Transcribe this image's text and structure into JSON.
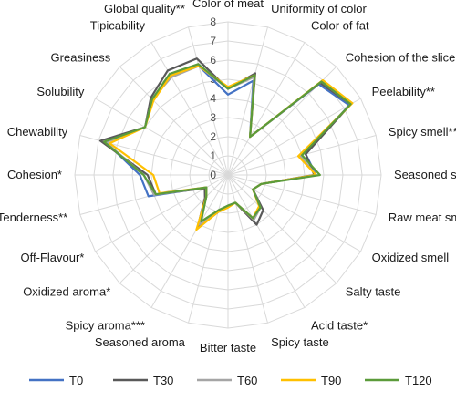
{
  "chart_data": {
    "type": "radar",
    "axes": [
      "Color of meat",
      "Uniformity of color",
      "Color of fat",
      "Cohesion of the slice",
      "Peelability**",
      "Spicy smell**",
      "Seasoned smell",
      "Raw meat smell",
      "Oxidized smell",
      "Salty taste",
      "Acid taste*",
      "Spicy taste",
      "Bitter taste",
      "Seasoned aroma",
      "Spicy aroma***",
      "Oxidized aroma*",
      "Off-Flavour*",
      "Tenderness**",
      "Cohesion*",
      "Chewability",
      "Solubility",
      "Greasiness",
      "Tipicability",
      "Global quality**"
    ],
    "rlim": [
      0,
      8
    ],
    "ticks": [
      "0",
      "1",
      "2",
      "3",
      "4",
      "5",
      "6",
      "7",
      "8"
    ],
    "grid": true,
    "legend_position": "bottom",
    "series": [
      {
        "name": "T0",
        "color": "#4472c4",
        "values": [
          4.2,
          5.1,
          2.3,
          6.7,
          7.3,
          4.2,
          4.6,
          1.8,
          1.5,
          2.4,
          2.6,
          1.5,
          1.6,
          2.0,
          3.0,
          1.6,
          1.3,
          4.3,
          4.6,
          6.6,
          5.0,
          5.6,
          6.0,
          5.9
        ]
      },
      {
        "name": "T30",
        "color": "#595959",
        "values": [
          4.5,
          5.5,
          2.3,
          6.8,
          7.4,
          4.2,
          4.5,
          1.8,
          1.5,
          2.6,
          3.0,
          1.5,
          1.6,
          2.0,
          3.2,
          1.7,
          1.4,
          3.9,
          4.2,
          6.9,
          5.0,
          5.7,
          6.3,
          6.3
        ]
      },
      {
        "name": "T60",
        "color": "#a5a5a5",
        "values": [
          4.5,
          5.3,
          2.3,
          6.9,
          7.4,
          3.9,
          4.6,
          1.8,
          1.5,
          2.4,
          2.7,
          1.5,
          1.6,
          1.9,
          3.0,
          1.6,
          1.3,
          4.0,
          4.4,
          6.6,
          5.0,
          5.6,
          5.9,
          5.9
        ]
      },
      {
        "name": "T90",
        "color": "#ffc000",
        "values": [
          4.6,
          5.4,
          2.3,
          7.0,
          7.5,
          3.8,
          4.6,
          1.8,
          1.5,
          2.3,
          2.6,
          1.5,
          1.7,
          2.0,
          3.3,
          1.6,
          1.3,
          3.7,
          3.9,
          6.4,
          5.0,
          5.5,
          6.0,
          5.9
        ]
      },
      {
        "name": "T120",
        "color": "#5b9b3a",
        "values": [
          4.5,
          5.4,
          2.3,
          6.9,
          7.4,
          4.0,
          4.8,
          1.8,
          1.5,
          2.4,
          2.6,
          1.5,
          1.6,
          1.9,
          2.8,
          1.6,
          1.3,
          3.9,
          4.4,
          6.7,
          5.0,
          5.6,
          6.1,
          6.0
        ]
      }
    ]
  }
}
